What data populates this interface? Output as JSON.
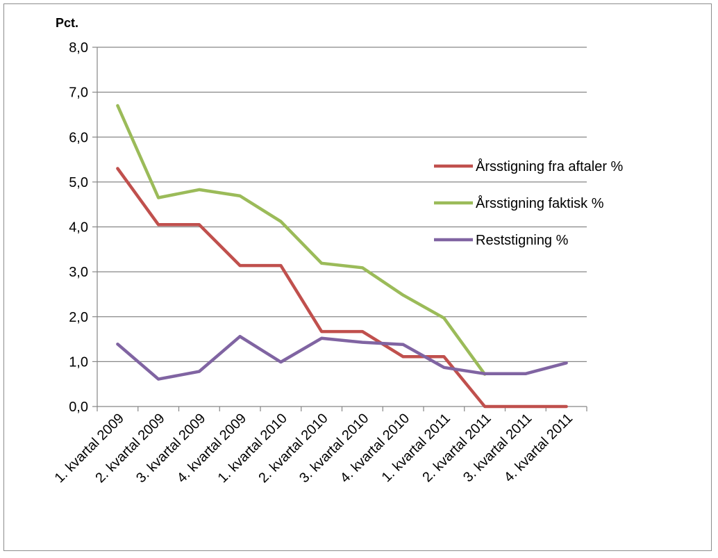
{
  "chart_data": {
    "type": "line",
    "unit_label": "Pct.",
    "categories": [
      "1. kvartal 2009",
      "2. kvartal 2009",
      "3. kvartal 2009",
      "4. kvartal 2009",
      "1. kvartal 2010",
      "2. kvartal 2010",
      "3. kvartal 2010",
      "4. kvartal 2010",
      "1. kvartal 2011",
      "2. kvartal 2011",
      "3. kvartal 2011",
      "4. kvartal 2011"
    ],
    "y_ticks": [
      "0,0",
      "1,0",
      "2,0",
      "3,0",
      "4,0",
      "5,0",
      "6,0",
      "7,0",
      "8,0"
    ],
    "ylim": [
      0,
      8
    ],
    "grid": true,
    "legend_position": "right",
    "series": [
      {
        "name": "Årsstigning fra aftaler %",
        "color": "#C0504D",
        "values": [
          5.3,
          4.05,
          4.05,
          3.14,
          3.14,
          1.67,
          1.67,
          1.11,
          1.11,
          0.0,
          0.0,
          0.0
        ]
      },
      {
        "name": "Årsstigning faktisk %",
        "color": "#9BBB59",
        "values": [
          6.7,
          4.65,
          4.83,
          4.69,
          4.12,
          3.19,
          3.09,
          2.48,
          1.97,
          0.72,
          null,
          null
        ]
      },
      {
        "name": "Reststigning %",
        "color": "#8064A2",
        "values": [
          1.39,
          0.61,
          0.78,
          1.56,
          0.99,
          1.52,
          1.43,
          1.38,
          0.87,
          0.73,
          0.73,
          0.97
        ]
      }
    ]
  }
}
